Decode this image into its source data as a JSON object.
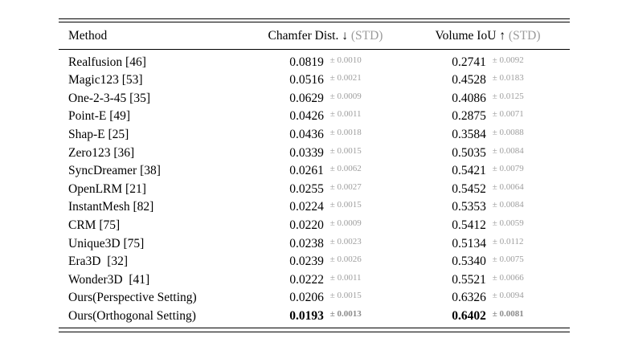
{
  "table": {
    "columns": [
      {
        "label": "Method"
      },
      {
        "label": "Chamfer Dist. ↓",
        "std_label": "(STD)"
      },
      {
        "label": "Volume IoU ↑",
        "std_label": "(STD)"
      }
    ],
    "rows": [
      {
        "method": "Realfusion [46]",
        "chamfer": "0.0819",
        "chamfer_std": "± 0.0010",
        "iou": "0.2741",
        "iou_std": "± 0.0092",
        "bold": false
      },
      {
        "method": "Magic123 [53]",
        "chamfer": "0.0516",
        "chamfer_std": "± 0.0021",
        "iou": "0.4528",
        "iou_std": "± 0.0183",
        "bold": false
      },
      {
        "method": "One-2-3-45 [35]",
        "chamfer": "0.0629",
        "chamfer_std": "± 0.0009",
        "iou": "0.4086",
        "iou_std": "± 0.0125",
        "bold": false
      },
      {
        "method": "Point-E [49]",
        "chamfer": "0.0426",
        "chamfer_std": "± 0.0011",
        "iou": "0.2875",
        "iou_std": "± 0.0071",
        "bold": false
      },
      {
        "method": "Shap-E [25]",
        "chamfer": "0.0436",
        "chamfer_std": "± 0.0018",
        "iou": "0.3584",
        "iou_std": "± 0.0088",
        "bold": false
      },
      {
        "method": "Zero123 [36]",
        "chamfer": "0.0339",
        "chamfer_std": "± 0.0015",
        "iou": "0.5035",
        "iou_std": "± 0.0084",
        "bold": false
      },
      {
        "method": "SyncDreamer [38]",
        "chamfer": "0.0261",
        "chamfer_std": "± 0.0062",
        "iou": "0.5421",
        "iou_std": "± 0.0079",
        "bold": false
      },
      {
        "method": "OpenLRM [21]",
        "chamfer": "0.0255",
        "chamfer_std": "± 0.0027",
        "iou": "0.5452",
        "iou_std": "± 0.0064",
        "bold": false
      },
      {
        "method": "InstantMesh [82]",
        "chamfer": "0.0224",
        "chamfer_std": "± 0.0015",
        "iou": "0.5353",
        "iou_std": "± 0.0084",
        "bold": false
      },
      {
        "method": "CRM [75]",
        "chamfer": "0.0220",
        "chamfer_std": "± 0.0009",
        "iou": "0.5412",
        "iou_std": "± 0.0059",
        "bold": false
      },
      {
        "method": "Unique3D [75]",
        "chamfer": "0.0238",
        "chamfer_std": "± 0.0023",
        "iou": "0.5134",
        "iou_std": "± 0.0112",
        "bold": false
      },
      {
        "method": "Era3D  [32]",
        "chamfer": "0.0239",
        "chamfer_std": "± 0.0026",
        "iou": "0.5340",
        "iou_std": "± 0.0075",
        "bold": false
      },
      {
        "method": "Wonder3D  [41]",
        "chamfer": "0.0222",
        "chamfer_std": "± 0.0011",
        "iou": "0.5521",
        "iou_std": "± 0.0066",
        "bold": false
      },
      {
        "method": "Ours(Perspective Setting)",
        "chamfer": "0.0206",
        "chamfer_std": "± 0.0015",
        "iou": "0.6326",
        "iou_std": "± 0.0094",
        "bold": false
      },
      {
        "method": "Ours(Orthogonal Setting)",
        "chamfer": "0.0193",
        "chamfer_std": "± 0.0013",
        "iou": "0.6402",
        "iou_std": "± 0.0081",
        "bold": true
      }
    ],
    "colors": {
      "text": "#000000",
      "std_gray": "#9e9e9e",
      "rule": "#000000",
      "background": "#ffffff"
    }
  }
}
